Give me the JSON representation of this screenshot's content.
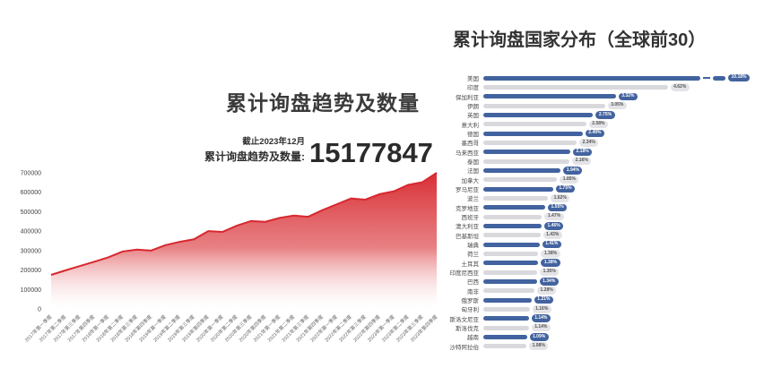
{
  "colors": {
    "area_red": "#d7282e",
    "area_fade": "#fdeceb",
    "bar_blue": "#42639f",
    "bar_gray": "#d9d9dd",
    "badge_gray_bg": "#e4e4e8",
    "badge_gray_text": "#555555",
    "axis_text": "#666666",
    "title_text": "#3a3a3a"
  },
  "chart_data": [
    {
      "type": "area",
      "title": "累计询盘趋势及数量",
      "as_of": "截止2023年12月",
      "total_label": "累计询盘趋势及数量:",
      "total_value": "15177847",
      "xlabel": "",
      "ylabel": "",
      "ylim": [
        0,
        700000
      ],
      "yticks": [
        0,
        100000,
        200000,
        300000,
        400000,
        500000,
        600000,
        700000
      ],
      "grid": false,
      "legend": "none",
      "x": [
        "2017年第一季度",
        "2017年第二季度",
        "2017年第三季度",
        "2017年第四季度",
        "2018年第一季度",
        "2018年第二季度",
        "2018年第三季度",
        "2018年第四季度",
        "2019年第一季度",
        "2019年第二季度",
        "2019年第三季度",
        "2019年第四季度",
        "2020年第一季度",
        "2020年第二季度",
        "2020年第三季度",
        "2020年第四季度",
        "2021年第一季度",
        "2021年第二季度",
        "2021年第三季度",
        "2021年第四季度",
        "2022年第一季度",
        "2022年第二季度",
        "2022年第三季度",
        "2022年第四季度",
        "2023年第一季度",
        "2023年第二季度",
        "2023年第三季度",
        "2023年第四季度"
      ],
      "values": [
        175000,
        198000,
        220000,
        242000,
        265000,
        295000,
        305000,
        300000,
        328000,
        345000,
        358000,
        400000,
        396000,
        428000,
        452000,
        448000,
        468000,
        480000,
        474000,
        508000,
        538000,
        568000,
        562000,
        590000,
        605000,
        638000,
        652000,
        700000
      ]
    },
    {
      "type": "bar",
      "orientation": "horizontal",
      "title": "累计询盘国家分布（全球前30）",
      "legend": "none",
      "grid": false,
      "truncated_bar_index": 0,
      "categories": [
        "美国",
        "印度",
        "保加利亚",
        "伊朗",
        "英国",
        "意大利",
        "德国",
        "墨西哥",
        "马来西亚",
        "泰国",
        "法国",
        "加拿大",
        "罗马尼亚",
        "波兰",
        "克罗地亚",
        "西班牙",
        "澳大利亚",
        "巴基斯坦",
        "瑞典",
        "荷兰",
        "土耳其",
        "印度尼西亚",
        "巴西",
        "南非",
        "俄罗斯",
        "匈牙利",
        "斯洛文尼亚",
        "斯洛伐克",
        "越南",
        "沙特阿拉伯"
      ],
      "values": [
        10.18,
        4.62,
        3.32,
        3.05,
        2.75,
        2.58,
        2.49,
        2.34,
        2.18,
        2.16,
        1.94,
        1.85,
        1.75,
        1.62,
        1.55,
        1.47,
        1.46,
        1.43,
        1.41,
        1.38,
        1.38,
        1.35,
        1.34,
        1.28,
        1.21,
        1.16,
        1.14,
        1.14,
        1.09,
        1.08
      ],
      "value_labels": [
        "10.18%",
        "4.62%",
        "3.32%",
        "3.05%",
        "2.75%",
        "2.58%",
        "2.49%",
        "2.34%",
        "2.18%",
        "2.16%",
        "1.94%",
        "1.85%",
        "1.75%",
        "1.62%",
        "1.55%",
        "1.47%",
        "1.46%",
        "1.43%",
        "1.41%",
        "1.38%",
        "1.38%",
        "1.35%",
        "1.34%",
        "1.28%",
        "1.21%",
        "1.16%",
        "1.14%",
        "1.14%",
        "1.09%",
        "1.08%"
      ]
    }
  ]
}
